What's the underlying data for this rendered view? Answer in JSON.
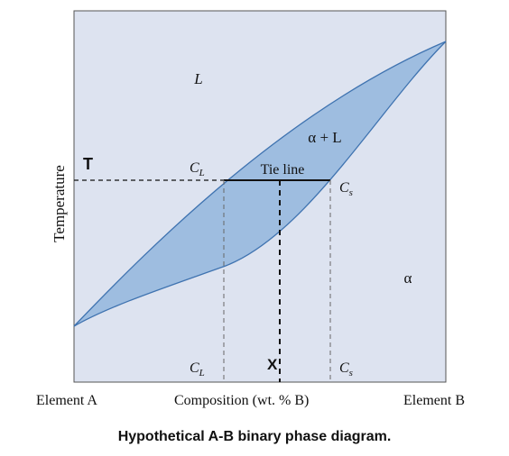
{
  "axes": {
    "ylabel": "Temperature",
    "xlabel": "Composition (wt. % B)",
    "x_left": "Element A",
    "x_right": "Element B"
  },
  "regions": {
    "liquid": "L",
    "two_phase": "α + L",
    "solid": "α"
  },
  "markers": {
    "temperature": "T",
    "composition_x": "X",
    "tie_line": "Tie line",
    "cl_main": "C",
    "cl_sub": "L",
    "cs_main": "C",
    "cs_sub": "s"
  },
  "caption": "Hypothetical A-B binary phase diagram.",
  "colors": {
    "plot_background": "#dde3f0",
    "two_phase_fill": "#9ebde0",
    "boundary_line": "#3f73b0"
  }
}
